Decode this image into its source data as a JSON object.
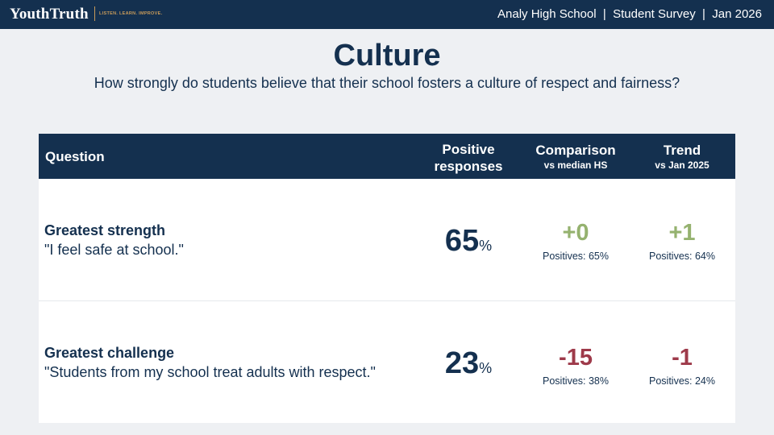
{
  "header": {
    "logo": "YouthTruth",
    "tagline": "LISTEN. LEARN. IMPROVE.",
    "info": "Analy High School  |  Student Survey  |  Jan 2026"
  },
  "page": {
    "title": "Culture",
    "subtitle": "How strongly do students believe that their school fosters a culture of respect and fairness?"
  },
  "table": {
    "columns": {
      "question": "Question",
      "positive_main": "Positive",
      "positive_sub": "responses",
      "comparison_main": "Comparison",
      "comparison_sub": "vs median HS",
      "trend_main": "Trend",
      "trend_sub": "vs Jan 2025"
    },
    "rows": [
      {
        "label": "Greatest strength",
        "question": "\"I feel safe at school.\"",
        "positive": "65",
        "positive_unit": "%",
        "comparison": "+0",
        "comparison_color": "#95b26f",
        "comparison_positives": "Positives: 65%",
        "trend": "+1",
        "trend_color": "#95b26f",
        "trend_positives": "Positives: 64%"
      },
      {
        "label": "Greatest challenge",
        "question": "\"Students from my school treat adults with respect.\"",
        "positive": "23",
        "positive_unit": "%",
        "comparison": "-15",
        "comparison_color": "#9e3a4a",
        "comparison_positives": "Positives: 38%",
        "trend": "-1",
        "trend_color": "#9e3a4a",
        "trend_positives": "Positives: 24%"
      }
    ]
  },
  "colors": {
    "navy": "#14304f",
    "background": "#eef0f3",
    "positive_green": "#95b26f",
    "negative_red": "#9e3a4a",
    "tagline_gold": "#c79a5a"
  }
}
